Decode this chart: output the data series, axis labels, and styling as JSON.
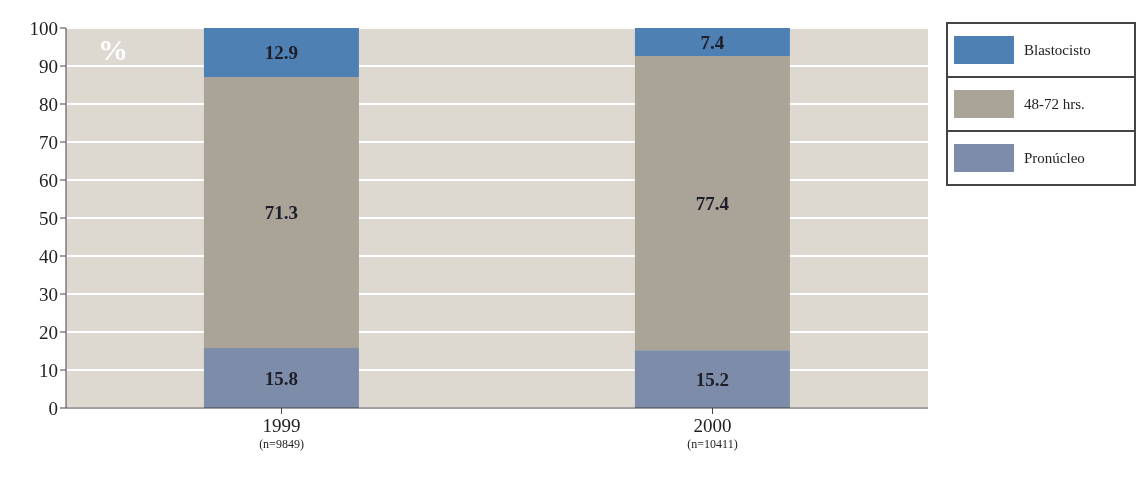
{
  "chart_data": {
    "type": "bar",
    "stacked": true,
    "ylabel": "%",
    "categories": [
      "1999\n(n=9849)",
      "2000\n(n=10411)"
    ],
    "series": [
      {
        "name": "Pronúcleo",
        "color": "#7d8ca8",
        "values": [
          15.8,
          15.2
        ]
      },
      {
        "name": "48-72 hrs.",
        "color": "#a9a398",
        "values": [
          71.3,
          77.4
        ]
      },
      {
        "name": "Blastocisto",
        "color": "#4f80b3",
        "values": [
          12.9,
          7.4
        ]
      }
    ],
    "ylim": [
      0,
      100
    ],
    "yticks": [
      0,
      10,
      20,
      30,
      40,
      50,
      60,
      70,
      80,
      90,
      100
    ],
    "grid": "y",
    "legend": "top right",
    "data_labels": true
  }
}
